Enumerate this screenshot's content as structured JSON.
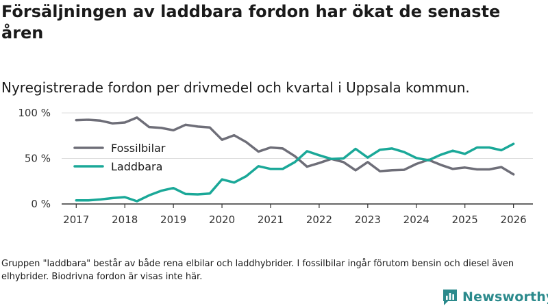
{
  "title": "Försäljningen av laddbara fordon har ökat de senaste åren",
  "subtitle": "Nyregistrerade fordon per drivmedel och kvartal i Uppsala kommun.",
  "note": "Gruppen \"laddbara\" består av både rena elbilar och laddhybrider. I fossilbilar ingår förutom bensin och diesel även elhybrider. Biodrivna fordon är visas inte här.",
  "brand": {
    "name": "Newsworthy"
  },
  "colors": {
    "fossil": "#6e6e78",
    "laddbara": "#1aa898",
    "grid": "#dcdcdc",
    "axis": "#333333",
    "brand": "#2b8a8c"
  },
  "chart_data": {
    "type": "line",
    "x_start": 2017.0,
    "x_step": 0.25,
    "xlim": [
      2016.7,
      2026.4
    ],
    "ylim": [
      0,
      100
    ],
    "yticks": [
      0,
      50,
      100
    ],
    "ytick_labels": [
      "0 %",
      "50 %",
      "100 %"
    ],
    "xticks": [
      2017,
      2018,
      2019,
      2020,
      2021,
      2022,
      2023,
      2024,
      2025,
      2026
    ],
    "xtick_labels": [
      "2017",
      "2018",
      "2019",
      "2020",
      "2021",
      "2022",
      "2023",
      "2024",
      "2025",
      "2026"
    ],
    "legend_position": "middle-left",
    "series": [
      {
        "name": "Fossilbilar",
        "color": "#6e6e78",
        "values": [
          92,
          92.5,
          91.5,
          88.5,
          89.5,
          95,
          84.5,
          83.5,
          81,
          87,
          85,
          84,
          70.5,
          75.5,
          68,
          57.5,
          62,
          61,
          52.5,
          41,
          45,
          49.5,
          46,
          37,
          46,
          36,
          37,
          37.5,
          44,
          48.5,
          43,
          38.5,
          40,
          38,
          38,
          40.5,
          32.5
        ]
      },
      {
        "name": "Laddbara",
        "color": "#1aa898",
        "values": [
          4,
          4,
          5,
          6.5,
          7.5,
          3,
          9.5,
          14.5,
          17.5,
          11,
          10.5,
          11.5,
          27,
          23.5,
          30.5,
          41.5,
          38.5,
          38.5,
          46,
          58,
          53.5,
          49.5,
          50,
          60.5,
          51,
          59.5,
          61,
          57,
          50.5,
          48,
          54,
          58.5,
          55,
          62,
          62,
          59,
          66
        ]
      }
    ]
  }
}
